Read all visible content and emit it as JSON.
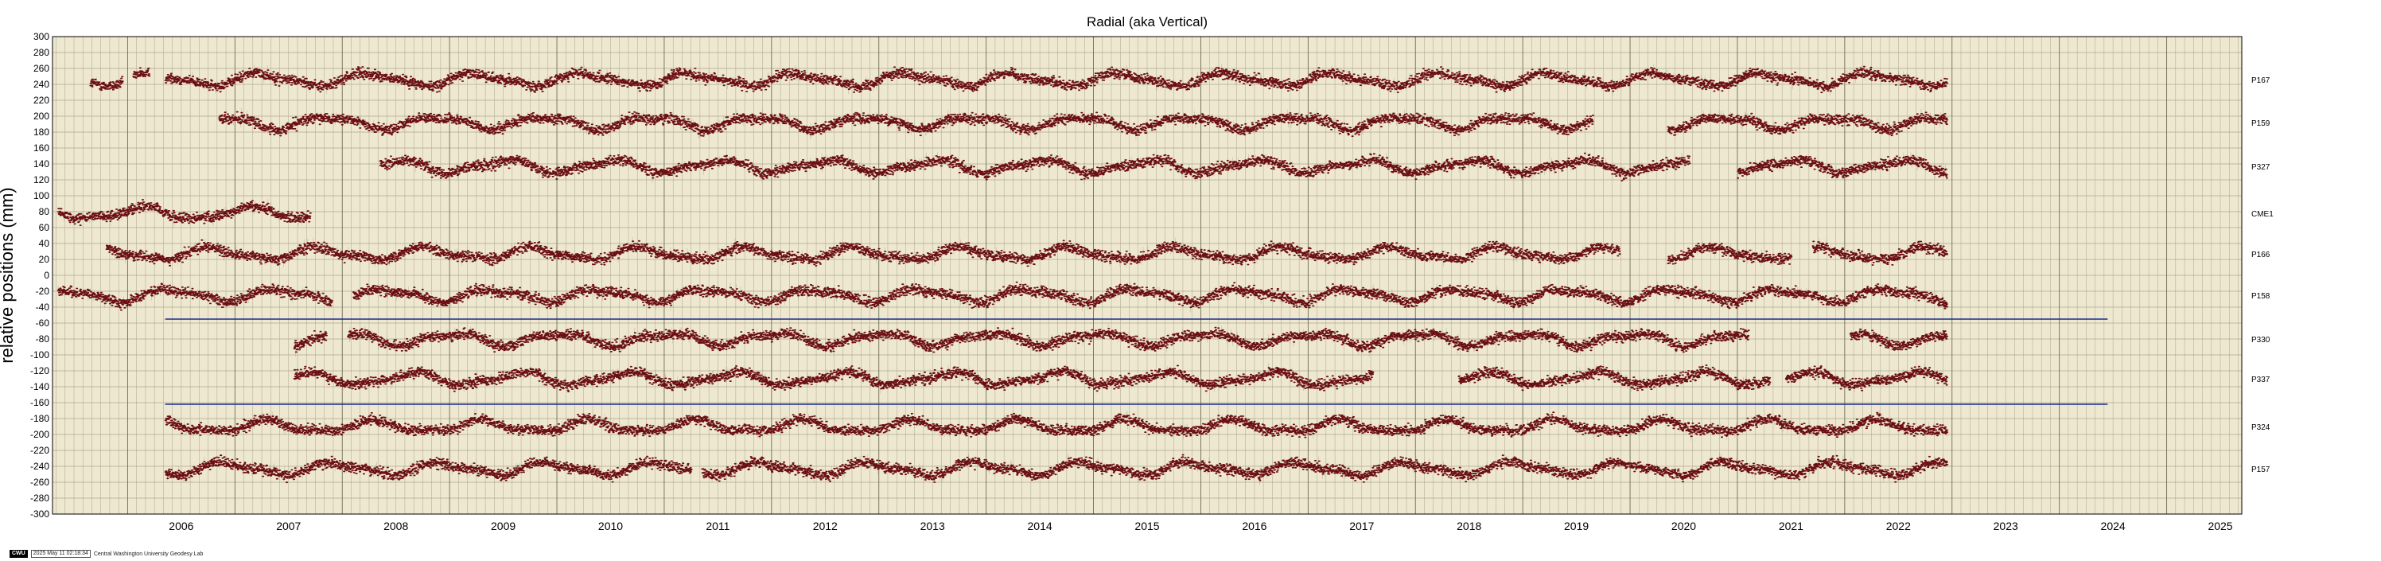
{
  "chart_data": {
    "type": "scatter",
    "title": "Radial (aka Vertical)",
    "ylabel": "relative positions (mm)",
    "xlabel": "",
    "xlim": [
      2005.3,
      2025.7
    ],
    "ylim": [
      -300,
      300
    ],
    "ytick_step": 20,
    "yticks": [
      "300",
      "280",
      "260",
      "240",
      "220",
      "200",
      "180",
      "160",
      "140",
      "120",
      "100",
      "80",
      "60",
      "40",
      "20",
      "0",
      "-20",
      "-40",
      "-60",
      "-80",
      "-100",
      "-120",
      "-140",
      "-160",
      "-180",
      "-200",
      "-220",
      "-240",
      "-260",
      "-280",
      "-300"
    ],
    "xticks": [
      "2006",
      "2007",
      "2008",
      "2009",
      "2010",
      "2011",
      "2012",
      "2013",
      "2014",
      "2015",
      "2016",
      "2017",
      "2018",
      "2019",
      "2020",
      "2021",
      "2022",
      "2023",
      "2024",
      "2025"
    ],
    "grid": true,
    "background_color": "#efe8d0",
    "point_color": "#6b0f12",
    "series": [
      {
        "name": "P167",
        "offset": 246,
        "segments": [
          [
            2005.65,
            2005.95
          ],
          [
            2006.05,
            2006.2
          ],
          [
            2006.35,
            2022.95
          ]
        ]
      },
      {
        "name": "P159",
        "offset": 192,
        "segments": [
          [
            2006.85,
            2019.65
          ],
          [
            2020.35,
            2022.95
          ]
        ]
      },
      {
        "name": "P327",
        "offset": 137,
        "segments": [
          [
            2008.35,
            2020.55
          ],
          [
            2021.0,
            2022.95
          ]
        ]
      },
      {
        "name": "CME1",
        "offset": 78,
        "segments": [
          [
            2005.35,
            2006.2
          ],
          [
            2006.2,
            2007.7
          ]
        ]
      },
      {
        "name": "P166",
        "offset": 27,
        "segments": [
          [
            2005.8,
            2019.9
          ],
          [
            2020.35,
            2021.5
          ],
          [
            2021.7,
            2022.95
          ]
        ]
      },
      {
        "name": "P158",
        "offset": -25,
        "segments": [
          [
            2005.35,
            2007.9
          ],
          [
            2008.1,
            2022.95
          ]
        ]
      },
      {
        "name": "P330",
        "offset": -80,
        "segments": [
          [
            2007.55,
            2007.85
          ],
          [
            2008.05,
            2021.1
          ],
          [
            2022.05,
            2022.95
          ]
        ]
      },
      {
        "name": "P337",
        "offset": -130,
        "segments": [
          [
            2007.55,
            2017.6
          ],
          [
            2018.4,
            2021.3
          ],
          [
            2021.45,
            2022.95
          ]
        ]
      },
      {
        "name": "P324",
        "offset": -190,
        "segments": [
          [
            2006.35,
            2022.95
          ]
        ]
      },
      {
        "name": "P157",
        "offset": -243,
        "segments": [
          [
            2006.35,
            2011.25
          ],
          [
            2011.35,
            2022.95
          ]
        ]
      }
    ],
    "reference_lines": [
      {
        "y": -55,
        "x_start": 2006.35,
        "x_end": 2024.45,
        "color": "#1a2a8a"
      },
      {
        "y": -162,
        "x_start": 2006.35,
        "x_end": 2024.45,
        "color": "#1a2a8a"
      }
    ]
  },
  "footer": {
    "badge": "CWU",
    "timestamp": "2025 May 11 02:18:34",
    "credit": "Central Washington University Geodesy Lab"
  }
}
